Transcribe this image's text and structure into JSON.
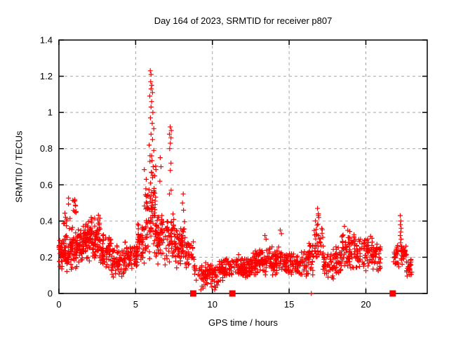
{
  "chart_data": {
    "type": "scatter",
    "title": "Day 164 of 2023, SRMTID for receiver p807",
    "xlabel": "GPS time / hours",
    "ylabel": "SRMTID / TECUs",
    "xlim": [
      0,
      24
    ],
    "ylim": [
      0,
      1.4
    ],
    "xticks": {
      "values": [
        0,
        5,
        10,
        15,
        20
      ],
      "labels": [
        "0",
        "5",
        "10",
        "15",
        "20"
      ]
    },
    "yticks": {
      "values": [
        0,
        0.2,
        0.4,
        0.6,
        0.8,
        1.0,
        1.2,
        1.4
      ],
      "labels": [
        "0",
        "0.2",
        "0.4",
        "0.6",
        "0.8",
        "1",
        "1.2",
        "1.4"
      ]
    },
    "grid": true,
    "legend": "none",
    "marker": "plus",
    "marker_color": "#ff0000",
    "grid_color": "#a8a8a8",
    "border_color": "#000000",
    "max_point": [
      5.95,
      1.23
    ],
    "seed": 42,
    "cluster_format": "[x_start_hours, x_end_hours, n_points, y_center, y_spread, y_min, y_max]",
    "clusters": [
      [
        0.0,
        0.7,
        70,
        0.22,
        0.07,
        0.08,
        0.38
      ],
      [
        0.3,
        0.75,
        12,
        0.42,
        0.08,
        0.3,
        0.57
      ],
      [
        0.7,
        1.6,
        95,
        0.25,
        0.08,
        0.08,
        0.45
      ],
      [
        0.9,
        1.25,
        10,
        0.47,
        0.05,
        0.38,
        0.53
      ],
      [
        1.6,
        2.1,
        60,
        0.3,
        0.08,
        0.12,
        0.48
      ],
      [
        2.1,
        2.7,
        70,
        0.3,
        0.1,
        0.1,
        0.52
      ],
      [
        2.7,
        3.4,
        60,
        0.22,
        0.07,
        0.07,
        0.38
      ],
      [
        3.4,
        4.3,
        70,
        0.18,
        0.06,
        0.06,
        0.3
      ],
      [
        4.3,
        5.1,
        60,
        0.21,
        0.06,
        0.08,
        0.33
      ],
      [
        5.1,
        5.55,
        40,
        0.3,
        0.09,
        0.15,
        0.52
      ],
      [
        5.55,
        6.35,
        95,
        0.45,
        0.2,
        0.12,
        0.95
      ],
      [
        6.35,
        7.0,
        55,
        0.3,
        0.1,
        0.12,
        0.55
      ],
      [
        7.0,
        7.5,
        40,
        0.3,
        0.1,
        0.15,
        0.6
      ],
      [
        7.5,
        8.3,
        70,
        0.27,
        0.09,
        0.1,
        0.55
      ],
      [
        8.3,
        8.8,
        30,
        0.22,
        0.06,
        0.1,
        0.33
      ],
      [
        8.8,
        9.3,
        14,
        0.13,
        0.05,
        0.03,
        0.22
      ],
      [
        9.3,
        10.4,
        80,
        0.1,
        0.045,
        0.02,
        0.18
      ],
      [
        10.4,
        11.3,
        70,
        0.13,
        0.045,
        0.04,
        0.22
      ],
      [
        11.3,
        12.5,
        95,
        0.15,
        0.045,
        0.05,
        0.25
      ],
      [
        12.5,
        13.6,
        90,
        0.17,
        0.05,
        0.07,
        0.3
      ],
      [
        13.6,
        14.8,
        90,
        0.18,
        0.055,
        0.07,
        0.32
      ],
      [
        14.8,
        16.2,
        95,
        0.16,
        0.05,
        0.06,
        0.3
      ],
      [
        16.2,
        16.6,
        30,
        0.2,
        0.07,
        0.08,
        0.35
      ],
      [
        16.6,
        17.2,
        35,
        0.28,
        0.1,
        0.1,
        0.46
      ],
      [
        17.2,
        18.4,
        80,
        0.17,
        0.06,
        0.05,
        0.32
      ],
      [
        18.4,
        19.2,
        60,
        0.25,
        0.08,
        0.1,
        0.42
      ],
      [
        19.2,
        20.4,
        80,
        0.22,
        0.07,
        0.08,
        0.38
      ],
      [
        20.4,
        21.0,
        40,
        0.2,
        0.06,
        0.08,
        0.32
      ],
      [
        21.8,
        22.15,
        25,
        0.2,
        0.05,
        0.1,
        0.3
      ],
      [
        22.3,
        22.65,
        30,
        0.22,
        0.04,
        0.12,
        0.3
      ],
      [
        22.65,
        23.0,
        25,
        0.15,
        0.04,
        0.07,
        0.22
      ]
    ],
    "outlier_points": [
      [
        5.95,
        1.23
      ],
      [
        6.0,
        1.21
      ],
      [
        5.98,
        1.17
      ],
      [
        6.05,
        1.15
      ],
      [
        6.0,
        1.13
      ],
      [
        6.1,
        1.11
      ],
      [
        5.92,
        1.09
      ],
      [
        6.04,
        1.06
      ],
      [
        6.0,
        1.03
      ],
      [
        6.12,
        1.0
      ],
      [
        5.96,
        0.97
      ],
      [
        6.08,
        0.94
      ],
      [
        6.18,
        0.91
      ],
      [
        6.0,
        0.88
      ],
      [
        6.1,
        0.85
      ],
      [
        5.88,
        0.82
      ],
      [
        6.18,
        0.79
      ],
      [
        6.04,
        0.76
      ],
      [
        5.93,
        0.73
      ],
      [
        6.14,
        0.7
      ],
      [
        6.02,
        0.67
      ],
      [
        6.1,
        0.64
      ],
      [
        5.97,
        0.61
      ],
      [
        6.2,
        0.58
      ],
      [
        6.6,
        0.75
      ],
      [
        6.65,
        0.7
      ],
      [
        6.58,
        0.62
      ],
      [
        7.25,
        0.92
      ],
      [
        7.32,
        0.9
      ],
      [
        7.2,
        0.88
      ],
      [
        7.3,
        0.86
      ],
      [
        7.26,
        0.83
      ],
      [
        7.22,
        0.8
      ],
      [
        7.3,
        0.72
      ],
      [
        7.26,
        0.68
      ],
      [
        7.31,
        0.57
      ],
      [
        7.2,
        0.55
      ],
      [
        8.1,
        0.55
      ],
      [
        8.05,
        0.5
      ],
      [
        8.12,
        0.46
      ],
      [
        9.25,
        0.02
      ],
      [
        9.32,
        0.04
      ],
      [
        9.4,
        0.03
      ],
      [
        10.15,
        0.02
      ],
      [
        13.42,
        0.32
      ],
      [
        13.5,
        0.3
      ],
      [
        14.42,
        0.35
      ],
      [
        14.5,
        0.33
      ],
      [
        16.85,
        0.47
      ],
      [
        16.9,
        0.44
      ],
      [
        16.93,
        0.42
      ],
      [
        22.24,
        0.43
      ],
      [
        22.28,
        0.4
      ],
      [
        22.25,
        0.38
      ],
      [
        22.3,
        0.36
      ],
      [
        22.27,
        0.34
      ],
      [
        22.24,
        0.32
      ],
      [
        22.3,
        0.3
      ],
      [
        22.26,
        0.28
      ],
      [
        22.29,
        0.26
      ]
    ],
    "zero_line_squares_x": [
      8.75,
      11.3,
      21.75
    ],
    "zero_line_plus_x": [
      16.45
    ]
  }
}
